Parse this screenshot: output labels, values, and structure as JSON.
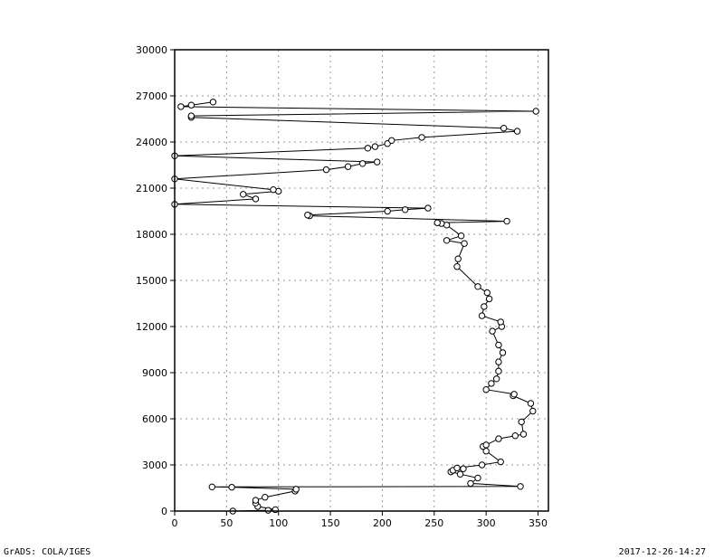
{
  "chart_data": {
    "type": "line",
    "title": "",
    "xlabel": "",
    "ylabel": "",
    "xlim": [
      0,
      360
    ],
    "ylim": [
      0,
      30000
    ],
    "x_ticks": [
      0,
      50,
      100,
      150,
      200,
      250,
      300,
      350
    ],
    "y_ticks": [
      0,
      3000,
      6000,
      9000,
      12000,
      15000,
      18000,
      21000,
      24000,
      27000,
      30000
    ],
    "grid": true,
    "marker": "open-circle",
    "series": [
      {
        "points": [
          [
            56,
            0
          ],
          [
            90,
            50
          ],
          [
            97,
            90
          ],
          [
            80,
            300
          ],
          [
            78,
            520
          ],
          [
            78,
            700
          ],
          [
            87,
            900
          ],
          [
            116,
            1300
          ],
          [
            117,
            1420
          ],
          [
            55,
            1550
          ],
          [
            36,
            1570
          ],
          [
            333,
            1600
          ],
          [
            285,
            1800
          ],
          [
            292,
            2150
          ],
          [
            275,
            2400
          ],
          [
            266,
            2550
          ],
          [
            268,
            2650
          ],
          [
            278,
            2750
          ],
          [
            272,
            2800
          ],
          [
            296,
            3000
          ],
          [
            314,
            3200
          ],
          [
            300,
            3900
          ],
          [
            297,
            4200
          ],
          [
            300,
            4300
          ],
          [
            312,
            4700
          ],
          [
            328,
            4900
          ],
          [
            336,
            5000
          ],
          [
            334,
            5800
          ],
          [
            345,
            6500
          ],
          [
            343,
            7000
          ],
          [
            326,
            7500
          ],
          [
            327,
            7600
          ],
          [
            300,
            7900
          ],
          [
            305,
            8300
          ],
          [
            310,
            8600
          ],
          [
            312,
            9100
          ],
          [
            312,
            9700
          ],
          [
            316,
            10300
          ],
          [
            312,
            10800
          ],
          [
            306,
            11700
          ],
          [
            315,
            12000
          ],
          [
            314,
            12300
          ],
          [
            296,
            12700
          ],
          [
            298,
            13300
          ],
          [
            303,
            13800
          ],
          [
            301,
            14200
          ],
          [
            292,
            14600
          ],
          [
            272,
            15900
          ],
          [
            273,
            16400
          ],
          [
            279,
            17400
          ],
          [
            262,
            17600
          ],
          [
            276,
            17900
          ],
          [
            262,
            18600
          ],
          [
            257,
            18700
          ],
          [
            253,
            18750
          ],
          [
            320,
            18850
          ],
          [
            130,
            19200
          ],
          [
            128,
            19250
          ],
          [
            205,
            19500
          ],
          [
            222,
            19600
          ],
          [
            244,
            19700
          ],
          [
            0,
            19950
          ],
          [
            78,
            20300
          ],
          [
            66,
            20600
          ],
          [
            100,
            20800
          ],
          [
            95,
            20900
          ],
          [
            0,
            21600
          ],
          [
            146,
            22200
          ],
          [
            167,
            22400
          ],
          [
            181,
            22600
          ],
          [
            195,
            22700
          ],
          [
            0,
            23100
          ],
          [
            186,
            23600
          ],
          [
            193,
            23700
          ],
          [
            205,
            23900
          ],
          [
            209,
            24100
          ],
          [
            238,
            24300
          ],
          [
            330,
            24700
          ],
          [
            317,
            24900
          ],
          [
            16,
            25600
          ],
          [
            16,
            25700
          ],
          [
            348,
            26000
          ],
          [
            6,
            26300
          ],
          [
            16,
            26400
          ],
          [
            37,
            26600
          ]
        ]
      }
    ]
  },
  "footer": {
    "left": "GrADS: COLA/IGES",
    "right": "2017-12-26-14:27"
  }
}
